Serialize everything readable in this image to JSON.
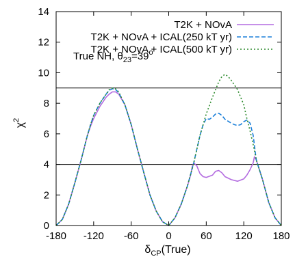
{
  "chart_data": {
    "type": "line",
    "xlabel_main": "δ",
    "xlabel_sub": "CP",
    "xlabel_suffix": "(True)",
    "ylabel_main": "χ",
    "ylabel_sup": "2",
    "xlim": [
      -180,
      180
    ],
    "ylim": [
      0,
      14
    ],
    "xticks": [
      -180,
      -120,
      -60,
      0,
      60,
      120,
      180
    ],
    "xtick_labels": [
      "-180",
      "-120",
      "-60",
      "0",
      "60",
      "120",
      "180"
    ],
    "yticks": [
      0,
      2,
      4,
      6,
      8,
      10,
      12,
      14
    ],
    "ytick_labels": [
      "0",
      "2",
      "4",
      "6",
      "8",
      "10",
      "12",
      "14"
    ],
    "reference_lines": [
      4,
      9
    ],
    "legend_position": "top-right",
    "annotation_main": "True NH,  θ",
    "annotation_sub": "23",
    "annotation_mid": "=39",
    "annotation_sup": "o",
    "series": [
      {
        "name": "T2K + NOvA",
        "color": "#b36be0",
        "dash": "solid",
        "x": [
          -180,
          -170,
          -160,
          -150,
          -140,
          -130,
          -125,
          -120,
          -110,
          -100,
          -95,
          -90,
          -85,
          -80,
          -70,
          -60,
          -50,
          -40,
          -30,
          -20,
          -10,
          0,
          10,
          20,
          30,
          35,
          38,
          40,
          45,
          50,
          55,
          60,
          70,
          75,
          80,
          85,
          90,
          100,
          110,
          120,
          125,
          130,
          135,
          137,
          140,
          150,
          160,
          170,
          180
        ],
        "y": [
          0,
          0.4,
          1.4,
          2.8,
          4.3,
          5.9,
          6.5,
          7.0,
          7.8,
          8.4,
          8.6,
          8.75,
          8.75,
          8.6,
          7.9,
          6.6,
          5.0,
          3.5,
          2.0,
          0.95,
          0.25,
          0,
          0.5,
          1.4,
          2.6,
          3.3,
          3.9,
          4.1,
          3.9,
          3.4,
          3.2,
          3.15,
          3.3,
          3.55,
          3.6,
          3.45,
          3.2,
          3.0,
          2.9,
          3.05,
          3.3,
          3.65,
          4.1,
          4.5,
          4.3,
          3.0,
          1.5,
          0.5,
          0
        ]
      },
      {
        "name": "T2K + NOvA + ICAL(250 kT yr)",
        "color": "#1a7fd9",
        "dash": "dashed",
        "x": [
          -180,
          -170,
          -160,
          -150,
          -140,
          -130,
          -125,
          -120,
          -110,
          -100,
          -95,
          -90,
          -85,
          -80,
          -70,
          -60,
          -50,
          -40,
          -30,
          -20,
          -10,
          0,
          10,
          20,
          30,
          40,
          45,
          50,
          55,
          60,
          65,
          70,
          75,
          80,
          85,
          90,
          100,
          105,
          110,
          115,
          120,
          125,
          130,
          135,
          140,
          150,
          160,
          170,
          180
        ],
        "y": [
          0,
          0.4,
          1.4,
          2.8,
          4.3,
          5.9,
          6.6,
          7.2,
          8.0,
          8.6,
          8.85,
          8.95,
          8.9,
          8.7,
          7.9,
          6.6,
          5.0,
          3.5,
          2.0,
          0.95,
          0.25,
          0,
          0.5,
          1.4,
          2.6,
          4.1,
          5.0,
          5.9,
          6.6,
          7.0,
          6.95,
          7.1,
          7.3,
          7.35,
          7.2,
          6.95,
          6.7,
          6.6,
          6.55,
          6.6,
          6.8,
          6.9,
          6.7,
          5.9,
          4.3,
          3.0,
          1.5,
          0.5,
          0
        ]
      },
      {
        "name": "T2K + NOvA + ICAL(500 kT yr)",
        "color": "#2e8b2e",
        "dash": "dotted",
        "x": [
          -180,
          -170,
          -160,
          -150,
          -140,
          -130,
          -125,
          -120,
          -110,
          -100,
          -95,
          -90,
          -85,
          -80,
          -70,
          -60,
          -50,
          -40,
          -30,
          -20,
          -10,
          0,
          10,
          20,
          30,
          40,
          50,
          60,
          70,
          80,
          85,
          90,
          95,
          100,
          110,
          120,
          125,
          130,
          135,
          140,
          150,
          160,
          170,
          180
        ],
        "y": [
          0,
          0.4,
          1.4,
          2.8,
          4.3,
          5.9,
          6.6,
          7.2,
          8.0,
          8.6,
          8.9,
          9.0,
          8.95,
          8.75,
          7.9,
          6.6,
          5.0,
          3.5,
          2.0,
          0.95,
          0.25,
          0,
          0.5,
          1.4,
          2.6,
          4.1,
          5.9,
          7.3,
          8.4,
          9.4,
          9.75,
          9.9,
          9.75,
          9.5,
          8.9,
          7.9,
          7.0,
          6.2,
          5.3,
          4.3,
          3.0,
          1.5,
          0.5,
          0
        ]
      }
    ]
  }
}
